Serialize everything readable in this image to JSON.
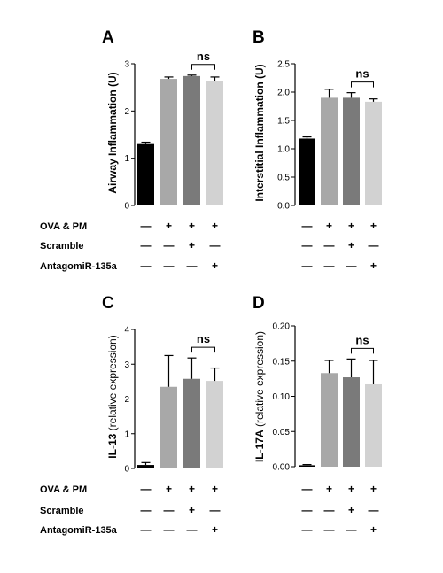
{
  "chart_data": [
    {
      "type": "bar",
      "panel_label": "A",
      "ylabel": "Airway Inflammation (U)",
      "ylim": [
        0,
        3
      ],
      "yticks": [
        "0",
        "1",
        "2",
        "3"
      ],
      "values": [
        1.3,
        2.68,
        2.74,
        2.63
      ],
      "errors": [
        0.04,
        0.04,
        0.02,
        0.09
      ],
      "bar_colors": [
        "#000000",
        "#a8a8a8",
        "#7a7a7a",
        "#d2d2d2"
      ],
      "annotation": "ns",
      "treatment_signs": [
        [
          "—",
          "+",
          "+",
          "+"
        ],
        [
          "—",
          "—",
          "+",
          "—"
        ],
        [
          "—",
          "—",
          "—",
          "+"
        ]
      ]
    },
    {
      "type": "bar",
      "panel_label": "B",
      "ylabel": "Interstitial Inflammation (U)",
      "ylim": [
        0,
        2.5
      ],
      "yticks": [
        "0.0",
        "0.5",
        "1.0",
        "1.5",
        "2.0",
        "2.5"
      ],
      "values": [
        1.18,
        1.9,
        1.9,
        1.83
      ],
      "errors": [
        0.03,
        0.15,
        0.09,
        0.05
      ],
      "bar_colors": [
        "#000000",
        "#a8a8a8",
        "#7a7a7a",
        "#d2d2d2"
      ],
      "annotation": "ns",
      "treatment_signs": [
        [
          "—",
          "+",
          "+",
          "+"
        ],
        [
          "—",
          "—",
          "+",
          "—"
        ],
        [
          "—",
          "—",
          "—",
          "+"
        ]
      ]
    },
    {
      "type": "bar",
      "panel_label": "C",
      "ylabel_bold": "IL-13",
      "ylabel_rest": " (relative expression)",
      "ylim": [
        0,
        4
      ],
      "yticks": [
        "0",
        "1",
        "2",
        "3",
        "4"
      ],
      "values": [
        0.1,
        2.35,
        2.58,
        2.52
      ],
      "errors": [
        0.07,
        0.9,
        0.6,
        0.37
      ],
      "bar_colors": [
        "#000000",
        "#a8a8a8",
        "#7a7a7a",
        "#d2d2d2"
      ],
      "annotation": "ns",
      "treatment_signs": [
        [
          "—",
          "+",
          "+",
          "+"
        ],
        [
          "—",
          "—",
          "+",
          "—"
        ],
        [
          "—",
          "—",
          "—",
          "+"
        ]
      ]
    },
    {
      "type": "bar",
      "panel_label": "D",
      "ylabel_bold": "IL-17A",
      "ylabel_rest": " (relative expression)",
      "ylim": [
        0,
        0.2
      ],
      "yticks": [
        "0.00",
        "0.05",
        "0.10",
        "0.15",
        "0.20"
      ],
      "values": [
        0.002,
        0.133,
        0.127,
        0.117
      ],
      "errors": [
        0.001,
        0.018,
        0.026,
        0.034
      ],
      "bar_colors": [
        "#000000",
        "#a8a8a8",
        "#7a7a7a",
        "#d2d2d2"
      ],
      "annotation": "ns",
      "treatment_signs": [
        [
          "—",
          "+",
          "+",
          "+"
        ],
        [
          "—",
          "—",
          "+",
          "—"
        ],
        [
          "—",
          "—",
          "—",
          "+"
        ]
      ]
    }
  ],
  "treatment_labels": [
    "OVA & PM",
    "Scramble",
    "AntagomiR-135a"
  ]
}
